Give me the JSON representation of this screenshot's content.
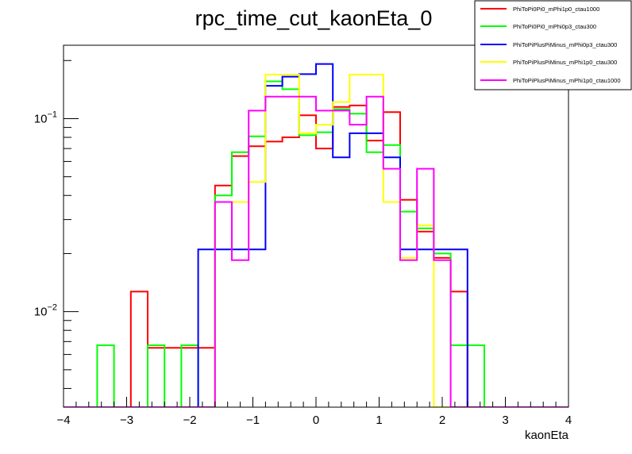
{
  "chart_data": {
    "type": "line",
    "style": "step-histogram",
    "title": "rpc_time_cut_kaonEta_0",
    "xlabel": "kaonEta",
    "ylabel": "",
    "xlim": [
      -4,
      4
    ],
    "ylim": [
      0.0032,
      0.24
    ],
    "yscale": "log",
    "grid": false,
    "legend_position": "top-right",
    "x_ticks": [
      {
        "value": -4,
        "label": "−4"
      },
      {
        "value": -3,
        "label": "−3"
      },
      {
        "value": -2,
        "label": "−2"
      },
      {
        "value": -1,
        "label": "−1"
      },
      {
        "value": 0,
        "label": "0"
      },
      {
        "value": 1,
        "label": "1"
      },
      {
        "value": 2,
        "label": "2"
      },
      {
        "value": 3,
        "label": "3"
      },
      {
        "value": 4,
        "label": "4"
      }
    ],
    "y_ticks": [
      {
        "value": 0.1,
        "base": "10",
        "exp": "−1"
      },
      {
        "value": 0.01,
        "base": "10",
        "exp": "−2"
      }
    ],
    "bin_edges": [
      -4.0,
      -3.733,
      -3.467,
      -3.2,
      -2.933,
      -2.667,
      -2.4,
      -2.133,
      -1.867,
      -1.6,
      -1.333,
      -1.067,
      -0.8,
      -0.533,
      -0.267,
      0.0,
      0.267,
      0.533,
      0.8,
      1.067,
      1.333,
      1.6,
      1.867,
      2.133,
      2.4,
      2.667,
      2.933,
      3.2,
      3.467,
      3.733,
      4.0
    ],
    "series": [
      {
        "name": "PhiToPi0Pi0_mPhi1p0_ctau1000",
        "color": "#ff0000",
        "values": [
          0,
          0,
          0,
          0,
          0.0127,
          0.0065,
          0.0065,
          0.0065,
          0.0065,
          0.045,
          0.064,
          0.072,
          0.076,
          0.08,
          0.104,
          0.07,
          0.115,
          0.117,
          0.077,
          0.108,
          0.038,
          0.026,
          0.019,
          0.0127,
          0,
          0,
          0,
          0,
          0,
          0
        ]
      },
      {
        "name": "PhiToPi0Pi0_mPhi0p3_ctau300",
        "color": "#00ff00",
        "values": [
          0,
          0,
          0.0067,
          0,
          0,
          0.0067,
          0,
          0.0067,
          0,
          0.04,
          0.067,
          0.081,
          0.156,
          0.142,
          0.082,
          0.085,
          0.112,
          0.106,
          0.067,
          0.073,
          0.033,
          0.027,
          0.02,
          0.0067,
          0.0067,
          0,
          0,
          0,
          0,
          0
        ]
      },
      {
        "name": "PhiToPiPlusPiMinus_mPhi0p3_ctau300",
        "color": "#0000ff",
        "values": [
          0,
          0,
          0,
          0,
          0,
          0,
          0,
          0,
          0.021,
          0.021,
          0.021,
          0.021,
          0.148,
          0.165,
          0.17,
          0.192,
          0.063,
          0.084,
          0.084,
          0.063,
          0.021,
          0.021,
          0.021,
          0.021,
          0,
          0,
          0,
          0,
          0,
          0
        ]
      },
      {
        "name": "PhiToPiPlusPiMinus_mPhi1p0_ctau300",
        "color": "#ffff00",
        "values": [
          0,
          0,
          0,
          0,
          0,
          0,
          0,
          0,
          0,
          0.037,
          0.037,
          0.047,
          0.169,
          0.169,
          0.084,
          0.093,
          0.122,
          0.169,
          0.169,
          0.037,
          0.019,
          0.028,
          0,
          0,
          0,
          0,
          0,
          0,
          0,
          0
        ]
      },
      {
        "name": "PhiToPiPlusPiMinus_mPhi1p0_ctau1000",
        "color": "#ff00ff",
        "values": [
          0,
          0,
          0,
          0,
          0,
          0,
          0,
          0,
          0,
          0.037,
          0.0185,
          0.11,
          0.13,
          0.13,
          0.13,
          0.11,
          0.11,
          0.093,
          0.13,
          0.055,
          0.0185,
          0.055,
          0.0185,
          0,
          0,
          0,
          0,
          0,
          0,
          0
        ]
      }
    ]
  }
}
